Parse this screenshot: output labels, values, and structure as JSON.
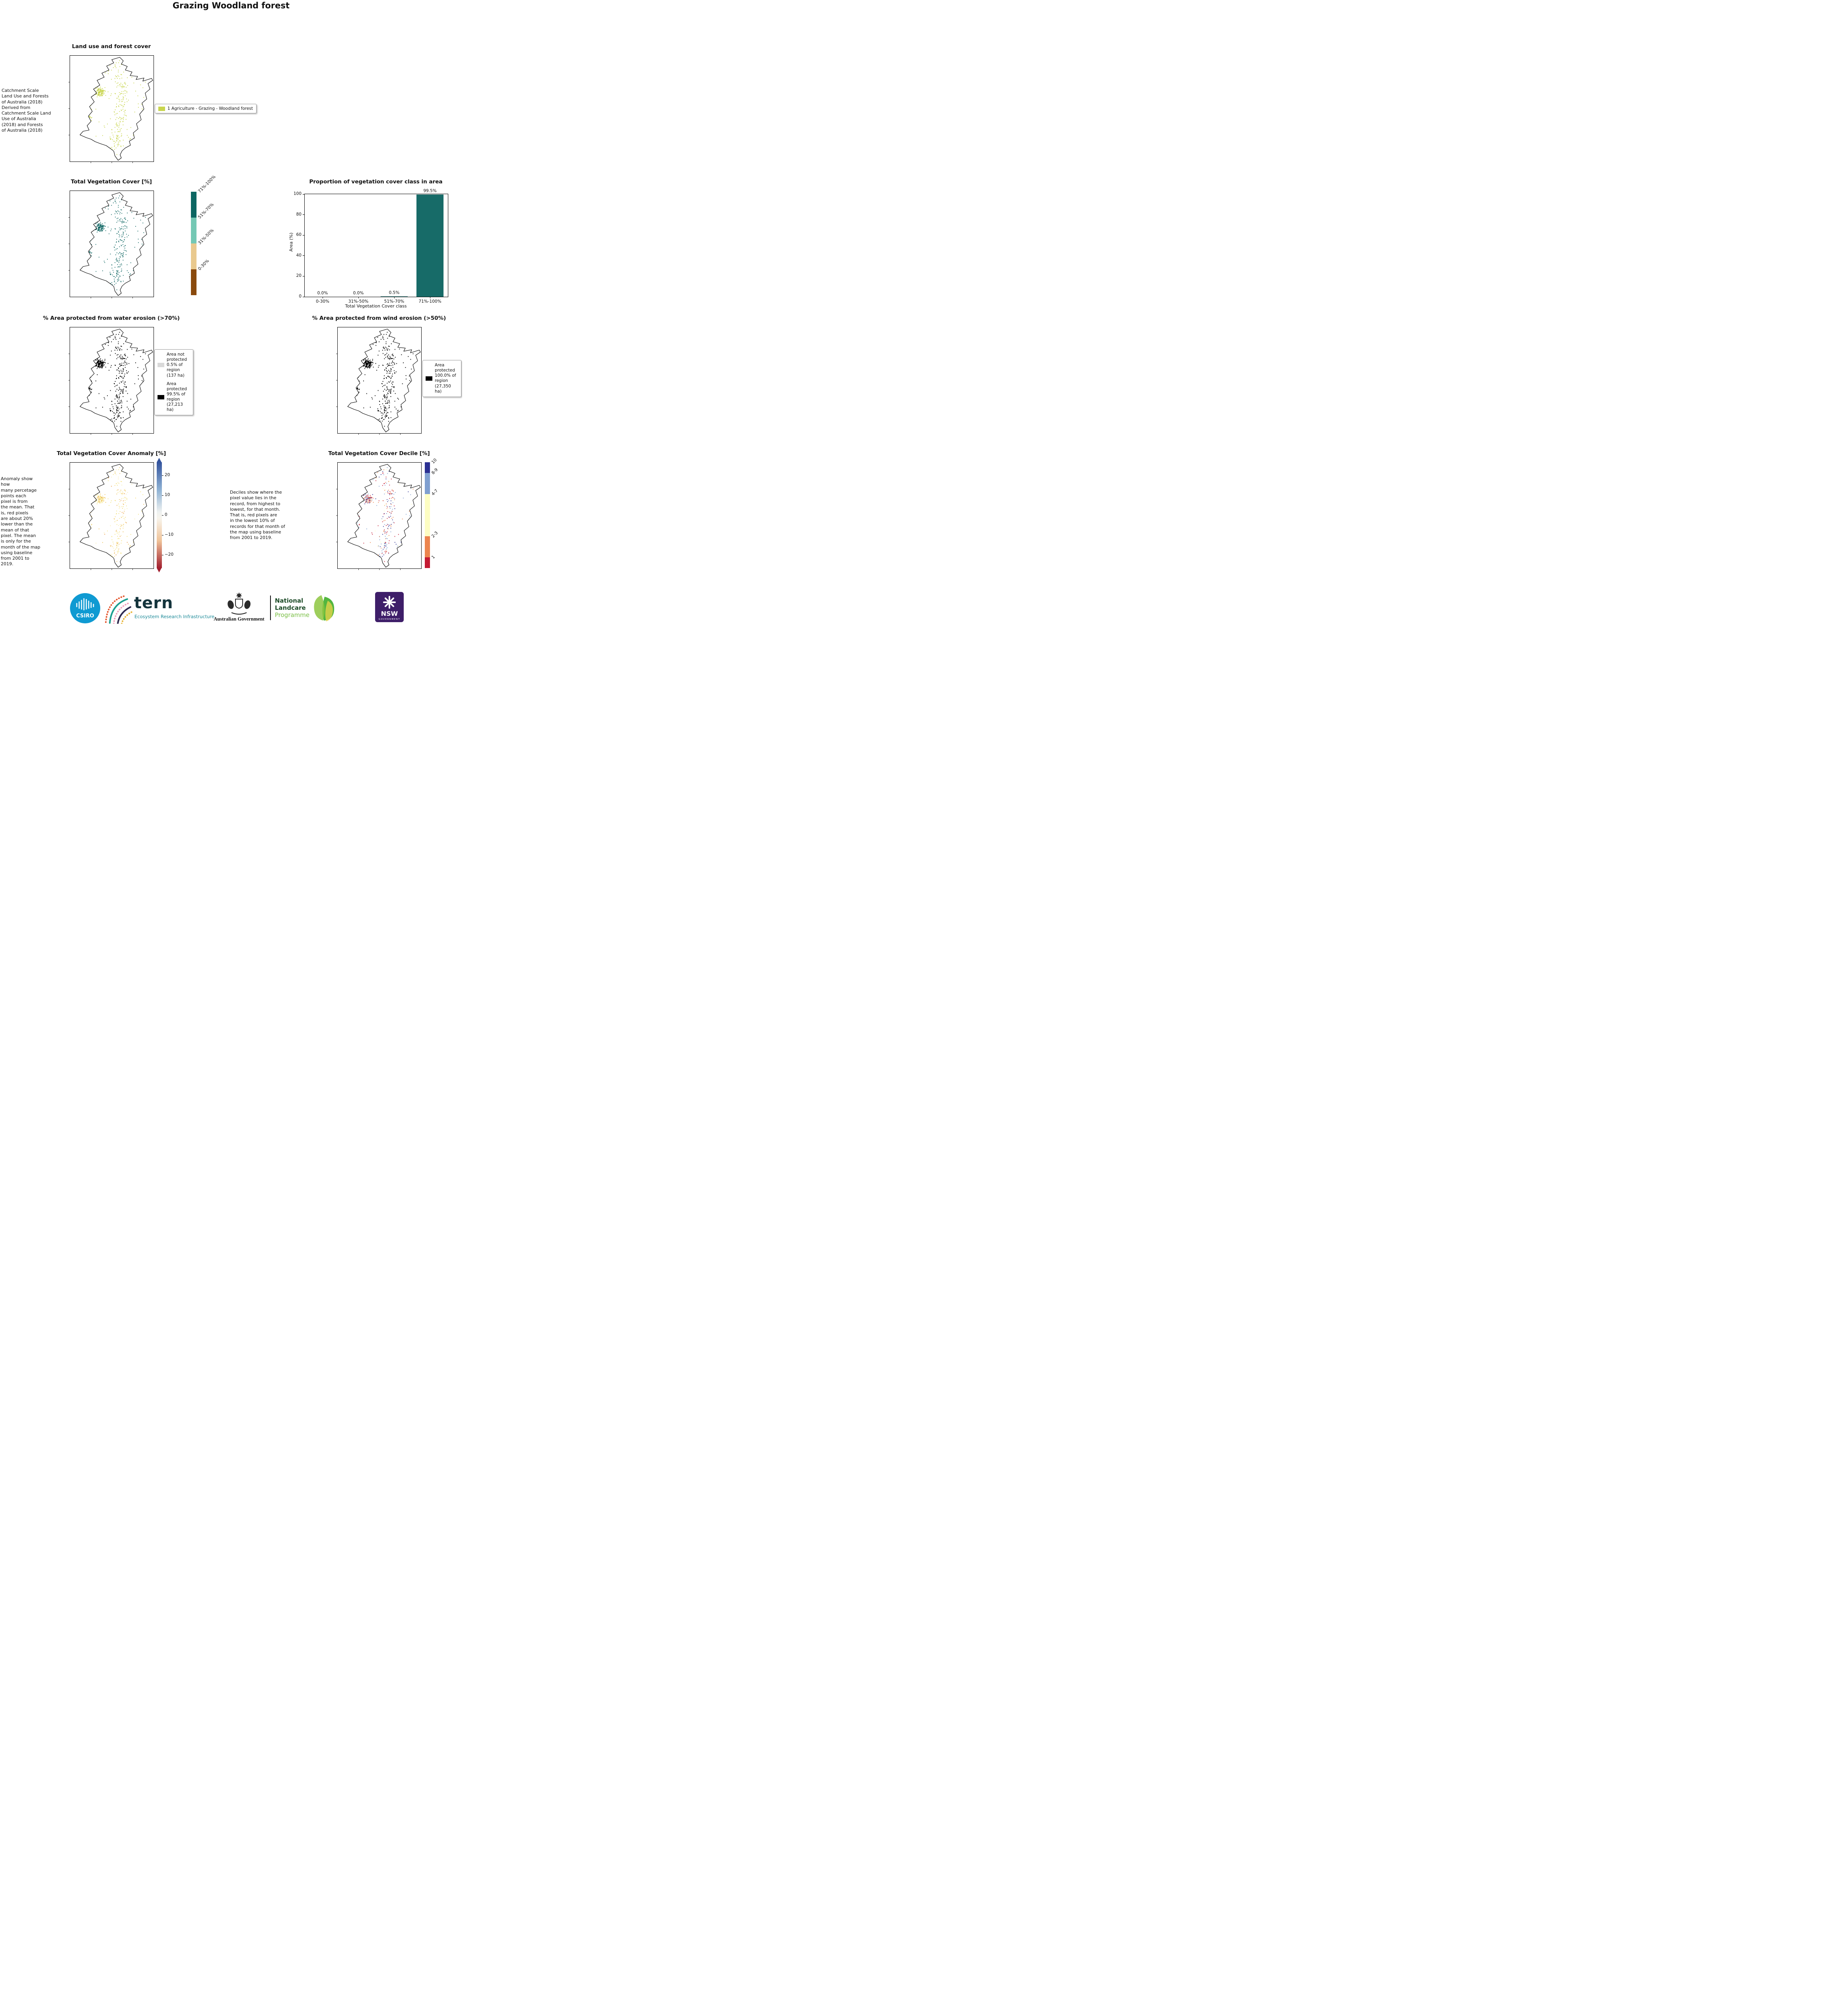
{
  "page_title": "Grazing Woodland forest",
  "landuse": {
    "title": "Land use and forest cover",
    "note": "Catchment Scale\nLand Use and Forests\nof Australia (2018)\nDerived from\nCatchment Scale Land\nUse of Australia\n(2018) and Forests\nof Australia (2018)",
    "legend": {
      "label": "1 Agriculture - Grazing - Woodland forest",
      "color": "#c8d54e"
    }
  },
  "veg_cover": {
    "title": "Total Vegetation Cover [%]",
    "dot_color": "#176b68",
    "colorbar": [
      {
        "label": "71%-100%",
        "color": "#0c6662"
      },
      {
        "label": "51%-70%",
        "color": "#74c8b4"
      },
      {
        "label": "31%-50%",
        "color": "#e9c98e"
      },
      {
        "label": "0-30%",
        "color": "#8a4a0d"
      }
    ]
  },
  "chart_data": {
    "type": "bar",
    "title": "Proportion of vegetation cover class in area",
    "xlabel": "Total Vegetation Cover class",
    "ylabel": "Area (%)",
    "categories": [
      "0-30%",
      "31%-50%",
      "51%-70%",
      "71%-100%"
    ],
    "values": [
      0.0,
      0.0,
      0.5,
      99.5
    ],
    "value_labels": [
      "0.0%",
      "0.0%",
      "0.5%",
      "99.5%"
    ],
    "yticks": [
      0,
      20,
      40,
      60,
      80,
      100
    ],
    "ylim": [
      0,
      100
    ],
    "bar_color": "#176b68",
    "grid": false,
    "legend": "none"
  },
  "water": {
    "title": "% Area protected from water erosion (>70%)",
    "dot_color": "#000000",
    "legend": [
      {
        "label": "Area not\nprotected\n0.5% of\nregion\n(137 ha)",
        "color": "#d9d9d9"
      },
      {
        "label": "Area\nprotected\n99.5% of\nregion\n(27,213\nha)",
        "color": "#000000"
      }
    ]
  },
  "wind": {
    "title": "% Area protected from wind erosion (>50%)",
    "dot_color": "#000000",
    "legend": [
      {
        "label": "Area\nprotected\n100.0% of\nregion\n(27,350\nha)",
        "color": "#000000"
      }
    ]
  },
  "anomaly": {
    "title": "Total Vegetation Cover Anomaly [%]",
    "note": "Anomaly show how\nmany percetage\npoints each\npixel is from\nthe mean. That\nis, red pixels\nare about 20%\nlower than the\nmean of that\npixel. The mean\nis only for the\nmonth of the map\nusing baseline\nfrom 2001 to\n2019.",
    "ticks": [
      "20",
      "10",
      "0",
      "−10",
      "−20"
    ],
    "colorbar_top": "#34549e",
    "colorbar_bottom": "#a21f2f",
    "dot_palette": [
      "#f3e27e",
      "#f8ecad",
      "#edbf5a",
      "#e9963f",
      "#f5d96d"
    ]
  },
  "decile": {
    "title": "Total Vegetation Cover Decile [%]",
    "note": "Deciles show where the\npixel value lies in the\nrecord, from highest to\nlowest, for that month.\nThat is, red pixels are\nin the lowest 10% of\nrecords for that month of\nthe map using baseline\nfrom 2001 to 2019.",
    "colorbar": [
      {
        "label": "10",
        "color": "#2b3092",
        "span": 1
      },
      {
        "label": "8-9",
        "color": "#7f9fd0",
        "span": 2
      },
      {
        "label": "4-7",
        "color": "#fdfdc2",
        "span": 4
      },
      {
        "label": "2-3",
        "color": "#ec854e",
        "span": 2
      },
      {
        "label": "1",
        "color": "#c41a33",
        "span": 1
      }
    ]
  },
  "footer": {
    "csiro": "CSIRO",
    "tern": "tern",
    "tern_sub": "Ecosystem Research Infrastructure",
    "aus_gov": "Australian Government",
    "landcare_1": "National",
    "landcare_2": "Landcare",
    "landcare_3": "Programme",
    "nsw": "NSW",
    "nsw_sub": "GOVERNMENT"
  }
}
